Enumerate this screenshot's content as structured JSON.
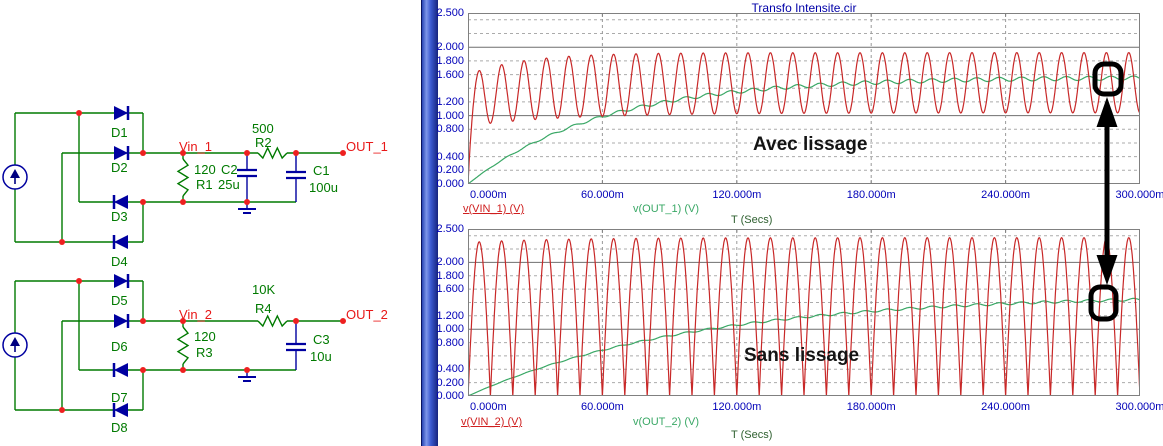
{
  "app": {
    "panel_title": "Transfo Intensite.cir"
  },
  "schematic": {
    "labels": {
      "d1": "D1",
      "d2": "D2",
      "d3": "D3",
      "d4": "D4",
      "d5": "D5",
      "d6": "D6",
      "d7": "D7",
      "d8": "D8",
      "vin1": "Vin_1",
      "out1": "OUT_1",
      "vin2": "Vin_2",
      "out2": "OUT_2",
      "r1_ref": "R1",
      "r1_val": "120",
      "r2_ref": "R2",
      "r2_val": "500",
      "c1_ref": "C1",
      "c1_val": "100u",
      "c2_ref": "C2",
      "c2_val": "25u",
      "r3_ref": "R3",
      "r3_val": "120",
      "r4_ref": "R4",
      "r4_val": "10K",
      "c3_ref": "C3",
      "c3_val": "10u"
    },
    "colors": {
      "wire": "#007a00",
      "component": "#0000a0",
      "junction": "#ee2020",
      "node_label": "#e81818",
      "ref_label": "#007a00"
    }
  },
  "chart_data": [
    {
      "type": "line",
      "title": "Transfo Intensite.cir",
      "annotation": "Avec lissage",
      "xlabel": "T (Secs)",
      "x_range_s": [
        0,
        0.3
      ],
      "ylim": [
        0,
        2.5
      ],
      "y_grid_step": 0.2,
      "y_solid_lines": [
        1.0,
        2.0
      ],
      "x_grid_s": [
        0.06,
        0.12,
        0.18,
        0.24
      ],
      "grid": true,
      "legend_position": "below",
      "y_ticks": [
        {
          "v": 2.5,
          "label": "2.500"
        },
        {
          "v": 2.0,
          "label": "2.000"
        },
        {
          "v": 1.8,
          "label": "1.800"
        },
        {
          "v": 1.6,
          "label": "1.600"
        },
        {
          "v": 1.2,
          "label": "1.200"
        },
        {
          "v": 1.0,
          "label": "1.000"
        },
        {
          "v": 0.8,
          "label": "0.800"
        },
        {
          "v": 0.4,
          "label": "0.400"
        },
        {
          "v": 0.2,
          "label": "0.200"
        },
        {
          "v": 0.0,
          "label": "0.000"
        }
      ],
      "x_ticks": [
        {
          "t": 0.0,
          "label": "0.000m"
        },
        {
          "t": 0.06,
          "label": "60.000m"
        },
        {
          "t": 0.12,
          "label": "120.000m"
        },
        {
          "t": 0.18,
          "label": "180.000m"
        },
        {
          "t": 0.24,
          "label": "240.000m"
        },
        {
          "t": 0.3,
          "label": "300.000m"
        }
      ],
      "series": [
        {
          "name": "v(VIN_1) (V)",
          "color": "#c82828",
          "kind": "rectified_smoothed",
          "f_ripple_hz": 100,
          "peak_start_v": 1.6,
          "peak_final_v": 1.92,
          "peak_tau_s": 0.025,
          "valley_start_v": 0.85,
          "valley_final_v": 1.04,
          "valley_tau_s": 0.045,
          "description": "full-wave rectified 50 Hz sine, partially smoothed; ripple period 10 ms"
        },
        {
          "name": "v(OUT_1) (V)",
          "color": "#3aa866",
          "kind": "rc_charge",
          "final_v": 1.56,
          "tau_s": 0.06,
          "ripple_v": 0.03,
          "key_values_at_x_ticks": [
            0,
            0.98,
            1.35,
            1.47,
            1.52,
            1.54
          ]
        }
      ]
    },
    {
      "type": "line",
      "title": "",
      "annotation": "Sans lissage",
      "xlabel": "T (Secs)",
      "x_range_s": [
        0,
        0.3
      ],
      "ylim": [
        0,
        2.5
      ],
      "y_grid_step": 0.2,
      "y_solid_lines": [
        1.0,
        2.0
      ],
      "x_grid_s": [
        0.06,
        0.12,
        0.18,
        0.24
      ],
      "grid": true,
      "legend_position": "below",
      "y_ticks": [
        {
          "v": 2.5,
          "label": "2.500"
        },
        {
          "v": 2.0,
          "label": "2.000"
        },
        {
          "v": 1.8,
          "label": "1.800"
        },
        {
          "v": 1.6,
          "label": "1.600"
        },
        {
          "v": 1.2,
          "label": "1.200"
        },
        {
          "v": 1.0,
          "label": "1.000"
        },
        {
          "v": 0.8,
          "label": "0.800"
        },
        {
          "v": 0.4,
          "label": "0.400"
        },
        {
          "v": 0.2,
          "label": "0.200"
        },
        {
          "v": 0.0,
          "label": "0.000"
        }
      ],
      "x_ticks": [
        {
          "t": 0.0,
          "label": "0.000m"
        },
        {
          "t": 0.06,
          "label": "60.000m"
        },
        {
          "t": 0.12,
          "label": "120.000m"
        },
        {
          "t": 0.18,
          "label": "180.000m"
        },
        {
          "t": 0.24,
          "label": "240.000m"
        },
        {
          "t": 0.3,
          "label": "300.000m"
        }
      ],
      "series": [
        {
          "name": "v(VIN_2) (V)",
          "color": "#c82828",
          "kind": "rectified",
          "f_ripple_hz": 100,
          "peak_v": 2.37,
          "peak_start_v": 2.3,
          "peak_tau_s": 0.04,
          "description": "full-wave rectified 50 Hz sine |sin|, valleys reach 0 every 10 ms"
        },
        {
          "name": "v(OUT_2) (V)",
          "color": "#3aa866",
          "kind": "rc_charge",
          "final_v": 1.52,
          "tau_s": 0.1,
          "ripple_v": 0.02,
          "key_values_at_x_ticks": [
            0,
            0.68,
            1.06,
            1.27,
            1.38,
            1.44
          ]
        }
      ]
    }
  ]
}
